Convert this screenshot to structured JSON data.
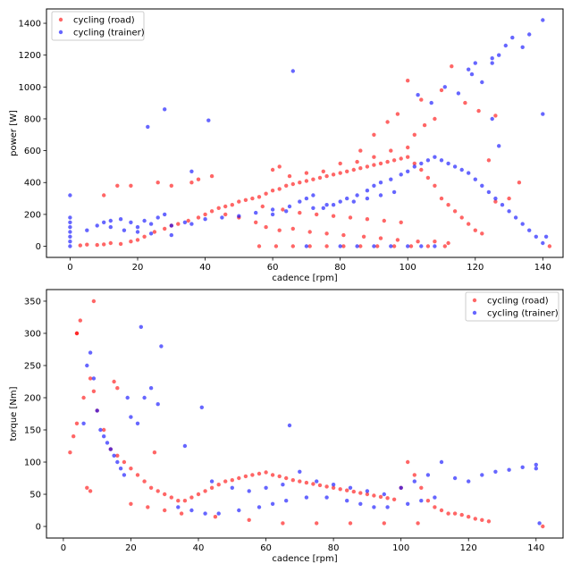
{
  "chart_data": [
    {
      "type": "scatter",
      "xlabel": "cadence [rpm]",
      "ylabel": "power [W]",
      "xlim": [
        -7,
        146
      ],
      "ylim": [
        -70,
        1490
      ],
      "xticks": [
        0,
        20,
        40,
        60,
        80,
        100,
        120,
        140
      ],
      "yticks": [
        0,
        200,
        400,
        600,
        800,
        1000,
        1200,
        1400
      ],
      "legend_position": "top-left",
      "series": [
        {
          "name": "cycling (road)",
          "color": "#ff0000",
          "x": [
            3,
            5,
            8,
            10,
            12,
            15,
            18,
            20,
            22,
            25,
            28,
            30,
            32,
            35,
            38,
            40,
            42,
            44,
            46,
            48,
            50,
            52,
            54,
            56,
            58,
            60,
            62,
            64,
            66,
            68,
            70,
            72,
            74,
            76,
            78,
            80,
            82,
            84,
            86,
            88,
            90,
            92,
            94,
            96,
            98,
            100,
            102,
            104,
            106,
            108,
            110,
            112,
            114,
            116,
            118,
            120,
            122,
            124,
            126,
            130,
            133,
            142,
            60,
            62,
            65,
            70,
            75,
            80,
            85,
            90,
            95,
            100,
            102,
            105,
            108,
            97,
            94,
            90,
            86,
            100,
            104,
            110,
            113,
            117,
            121,
            126,
            46,
            50,
            55,
            58,
            62,
            66,
            71,
            76,
            81,
            87,
            92,
            97,
            103,
            108,
            112,
            57,
            63,
            68,
            73,
            78,
            83,
            88,
            93,
            98,
            56,
            61,
            66,
            71,
            76,
            81,
            86,
            91,
            96,
            101,
            106,
            111,
            10,
            14,
            18,
            26,
            30,
            36,
            38,
            42
          ],
          "y": [
            5,
            10,
            8,
            12,
            20,
            15,
            30,
            40,
            60,
            90,
            110,
            130,
            140,
            160,
            180,
            200,
            220,
            240,
            250,
            260,
            280,
            290,
            300,
            310,
            330,
            350,
            360,
            380,
            390,
            400,
            410,
            420,
            430,
            440,
            450,
            460,
            470,
            480,
            490,
            500,
            510,
            520,
            530,
            540,
            550,
            560,
            520,
            480,
            430,
            380,
            300,
            260,
            220,
            180,
            140,
            100,
            80,
            540,
            280,
            300,
            400,
            0,
            480,
            500,
            440,
            460,
            470,
            520,
            530,
            560,
            600,
            620,
            700,
            760,
            800,
            830,
            780,
            700,
            600,
            1040,
            920,
            980,
            1130,
            900,
            850,
            820,
            200,
            180,
            150,
            120,
            100,
            110,
            90,
            80,
            70,
            60,
            50,
            40,
            30,
            30,
            20,
            250,
            230,
            210,
            200,
            190,
            180,
            170,
            160,
            150,
            0,
            0,
            0,
            0,
            0,
            0,
            0,
            0,
            0,
            0,
            0,
            0,
            320,
            380,
            380,
            400,
            380,
            400,
            420,
            440
          ]
        },
        {
          "name": "cycling (trainer)",
          "color": "#0000ff",
          "x": [
            0,
            0,
            0,
            0,
            0,
            0,
            0,
            0,
            5,
            8,
            10,
            12,
            15,
            18,
            20,
            22,
            24,
            26,
            28,
            30,
            34,
            36,
            40,
            45,
            50,
            55,
            60,
            65,
            68,
            70,
            72,
            75,
            78,
            80,
            82,
            85,
            88,
            90,
            92,
            95,
            98,
            100,
            102,
            104,
            106,
            108,
            110,
            112,
            114,
            116,
            118,
            120,
            122,
            124,
            126,
            128,
            130,
            132,
            134,
            136,
            138,
            140,
            140,
            141,
            66,
            41,
            28,
            23,
            36,
            103,
            107,
            111,
            115,
            119,
            122,
            125,
            127,
            129,
            131,
            118,
            120,
            125,
            125,
            127,
            136,
            134,
            140,
            70,
            80,
            85,
            90,
            95,
            100,
            104,
            108,
            60,
            64,
            72,
            76,
            84,
            88,
            92,
            96,
            12,
            16,
            20,
            24,
            30
          ],
          "y": [
            0,
            30,
            60,
            90,
            120,
            150,
            180,
            320,
            100,
            130,
            150,
            160,
            170,
            150,
            120,
            160,
            140,
            180,
            200,
            130,
            150,
            140,
            170,
            180,
            190,
            210,
            230,
            250,
            280,
            300,
            320,
            240,
            260,
            280,
            300,
            320,
            350,
            380,
            400,
            420,
            450,
            470,
            500,
            520,
            540,
            560,
            540,
            520,
            500,
            480,
            460,
            420,
            380,
            340,
            300,
            260,
            220,
            180,
            140,
            100,
            60,
            20,
            830,
            60,
            1100,
            790,
            860,
            750,
            470,
            950,
            900,
            1000,
            960,
            1080,
            1030,
            1150,
            1200,
            1260,
            1310,
            1110,
            1150,
            1180,
            800,
            630,
            1330,
            1250,
            1420,
            0,
            0,
            0,
            0,
            0,
            0,
            0,
            0,
            200,
            220,
            240,
            260,
            280,
            300,
            320,
            340,
            120,
            100,
            90,
            80,
            70
          ]
        }
      ]
    },
    {
      "type": "scatter",
      "xlabel": "cadence [rpm]",
      "ylabel": "torque [Nm]",
      "xlim": [
        -5,
        148
      ],
      "ylim": [
        -18,
        368
      ],
      "xticks": [
        0,
        20,
        40,
        60,
        80,
        100,
        120,
        140
      ],
      "yticks": [
        0,
        50,
        100,
        150,
        200,
        250,
        300,
        350
      ],
      "legend_position": "top-right",
      "series": [
        {
          "name": "cycling (road)",
          "color": "#ff0000",
          "x": [
            2,
            3,
            4,
            4,
            5,
            6,
            8,
            9,
            10,
            12,
            14,
            16,
            18,
            20,
            22,
            24,
            26,
            28,
            30,
            32,
            34,
            36,
            38,
            40,
            42,
            44,
            46,
            48,
            50,
            52,
            54,
            56,
            58,
            60,
            62,
            64,
            66,
            68,
            70,
            72,
            74,
            76,
            78,
            80,
            82,
            84,
            86,
            88,
            90,
            92,
            94,
            96,
            98,
            100,
            102,
            104,
            106,
            108,
            110,
            112,
            114,
            116,
            118,
            120,
            122,
            124,
            126,
            142,
            9,
            4,
            15,
            16,
            27,
            7,
            8,
            20,
            25,
            30,
            35,
            45,
            55,
            65,
            75,
            85,
            95,
            105
          ],
          "y": [
            115,
            140,
            160,
            300,
            320,
            200,
            230,
            210,
            180,
            150,
            120,
            110,
            100,
            90,
            80,
            70,
            60,
            55,
            50,
            45,
            40,
            40,
            45,
            50,
            55,
            60,
            65,
            70,
            72,
            75,
            78,
            80,
            82,
            84,
            80,
            78,
            75,
            72,
            70,
            68,
            66,
            64,
            62,
            60,
            58,
            56,
            54,
            52,
            50,
            48,
            46,
            44,
            42,
            60,
            100,
            80,
            60,
            40,
            30,
            25,
            20,
            20,
            18,
            15,
            12,
            10,
            8,
            0,
            350,
            300,
            225,
            215,
            115,
            60,
            55,
            35,
            30,
            25,
            20,
            15,
            10,
            5,
            5,
            5,
            5,
            5
          ]
        },
        {
          "name": "cycling (trainer)",
          "color": "#0000ff",
          "x": [
            6,
            7,
            8,
            9,
            10,
            11,
            12,
            13,
            14,
            15,
            16,
            17,
            18,
            19,
            20,
            22,
            23,
            24,
            26,
            28,
            29,
            36,
            41,
            44,
            50,
            55,
            60,
            65,
            67,
            70,
            75,
            80,
            85,
            90,
            95,
            100,
            104,
            108,
            112,
            116,
            120,
            124,
            128,
            132,
            136,
            140,
            140,
            141,
            34,
            38,
            42,
            46,
            52,
            58,
            62,
            66,
            72,
            78,
            84,
            88,
            92,
            96,
            102,
            106,
            110
          ],
          "y": [
            160,
            250,
            270,
            230,
            180,
            150,
            140,
            130,
            120,
            110,
            100,
            90,
            80,
            200,
            170,
            160,
            310,
            200,
            215,
            190,
            280,
            125,
            185,
            70,
            60,
            55,
            60,
            65,
            157,
            85,
            70,
            65,
            60,
            55,
            50,
            60,
            70,
            80,
            100,
            75,
            70,
            80,
            85,
            88,
            92,
            96,
            90,
            5,
            30,
            25,
            20,
            20,
            25,
            30,
            35,
            40,
            45,
            45,
            40,
            35,
            30,
            30,
            35,
            40,
            45
          ]
        }
      ]
    }
  ]
}
